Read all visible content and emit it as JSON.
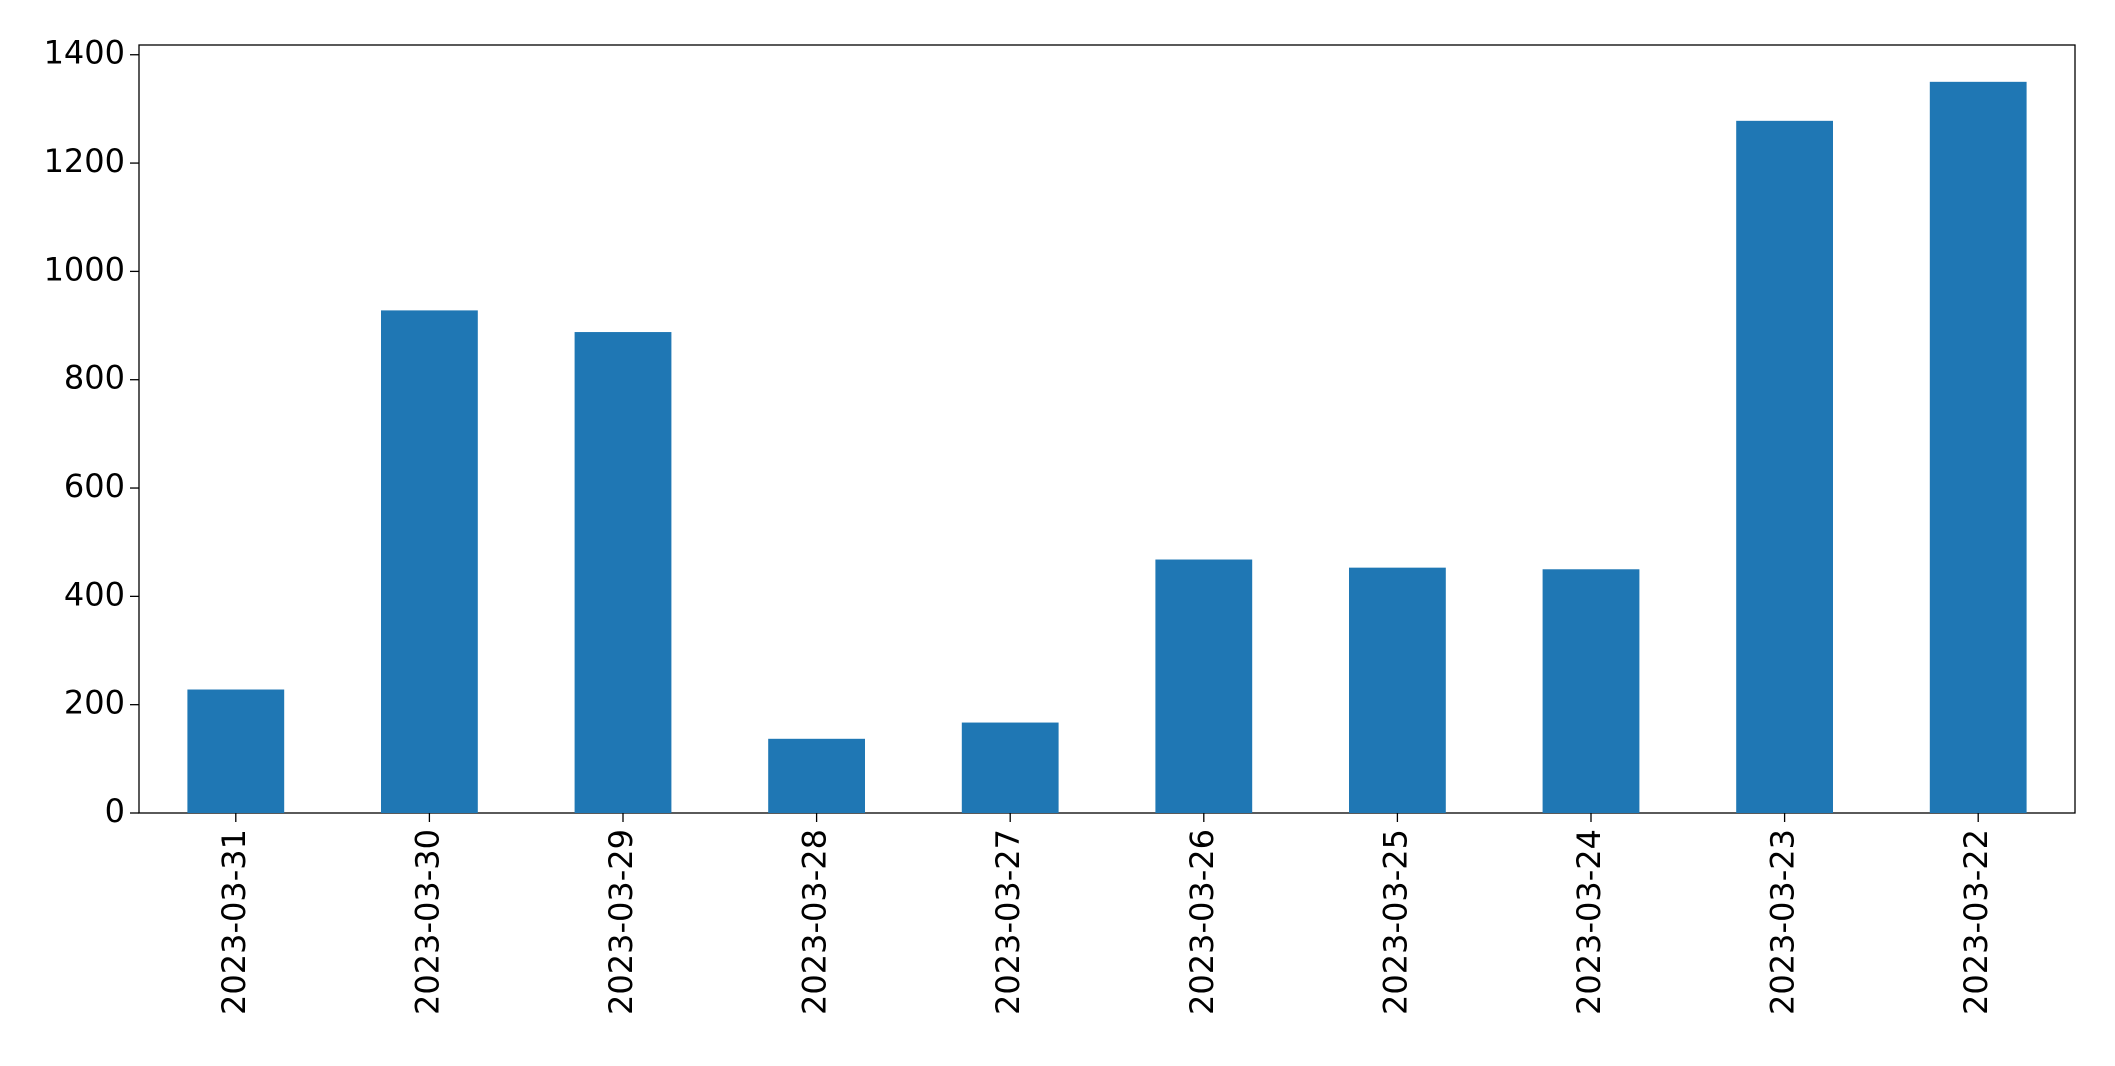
{
  "chart_data": {
    "type": "bar",
    "categories": [
      "2023-03-31",
      "2023-03-30",
      "2023-03-29",
      "2023-03-28",
      "2023-03-27",
      "2023-03-26",
      "2023-03-25",
      "2023-03-24",
      "2023-03-23",
      "2023-03-22"
    ],
    "values": [
      228,
      928,
      888,
      137,
      167,
      468,
      453,
      450,
      1278,
      1350
    ],
    "color": "#1f77b4",
    "ylim": [
      0,
      1418
    ],
    "yticks": [
      0,
      200,
      400,
      600,
      800,
      1000,
      1200,
      1400
    ],
    "grid": false
  }
}
